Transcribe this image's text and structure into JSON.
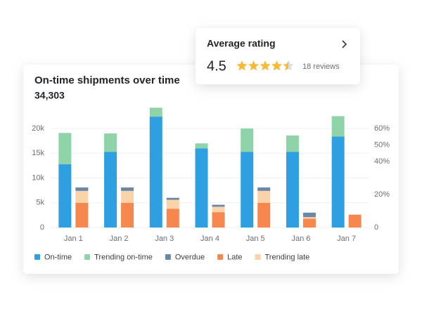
{
  "chart_data": {
    "type": "bar",
    "title": "On-time shipments over time",
    "subtitle": "34,303",
    "categories": [
      "Jan 1",
      "Jan 2",
      "Jan 3",
      "Jan 4",
      "Jan 5",
      "Jan 6",
      "Jan 7"
    ],
    "series": [
      {
        "name": "On-time",
        "color": "#2e9fe0",
        "stack": "left",
        "values": [
          12800,
          15300,
          22400,
          16000,
          15300,
          15300,
          18400
        ]
      },
      {
        "name": "Trending on-time",
        "color": "#8fd3a9",
        "stack": "left",
        "values": [
          6300,
          3700,
          1800,
          1000,
          4700,
          3300,
          4100
        ]
      },
      {
        "name": "Overdue",
        "color": "#6b87a8",
        "stack": "right",
        "values": [
          700,
          700,
          400,
          400,
          700,
          900,
          0
        ]
      },
      {
        "name": "Late",
        "color": "#f5874f",
        "stack": "right",
        "values": [
          5000,
          5000,
          3800,
          3100,
          5000,
          1800,
          2600
        ]
      },
      {
        "name": "Trending late",
        "color": "#fbd3a8",
        "stack": "right",
        "values": [
          2400,
          2400,
          1800,
          1100,
          2400,
          300,
          0
        ]
      }
    ],
    "ylim": [
      0,
      25000
    ],
    "yticks": [
      0,
      {
        "value": 5000,
        "label": "5k"
      },
      {
        "value": 10000,
        "label": "10k"
      },
      {
        "value": 15000,
        "label": "15k"
      },
      {
        "value": 20000,
        "label": "20k"
      }
    ],
    "y2lim": [
      0,
      75
    ],
    "y2ticks": [
      0,
      {
        "value": 20,
        "label": "20%"
      },
      {
        "value": 40,
        "label": "40%"
      },
      {
        "value": 50,
        "label": "50%"
      },
      {
        "value": 60,
        "label": "60%"
      }
    ],
    "grid": true,
    "legend": "bottom"
  },
  "rating_card": {
    "title": "Average rating",
    "rating": 4.5,
    "max_rating": 5,
    "reviews": "18 reviews"
  }
}
